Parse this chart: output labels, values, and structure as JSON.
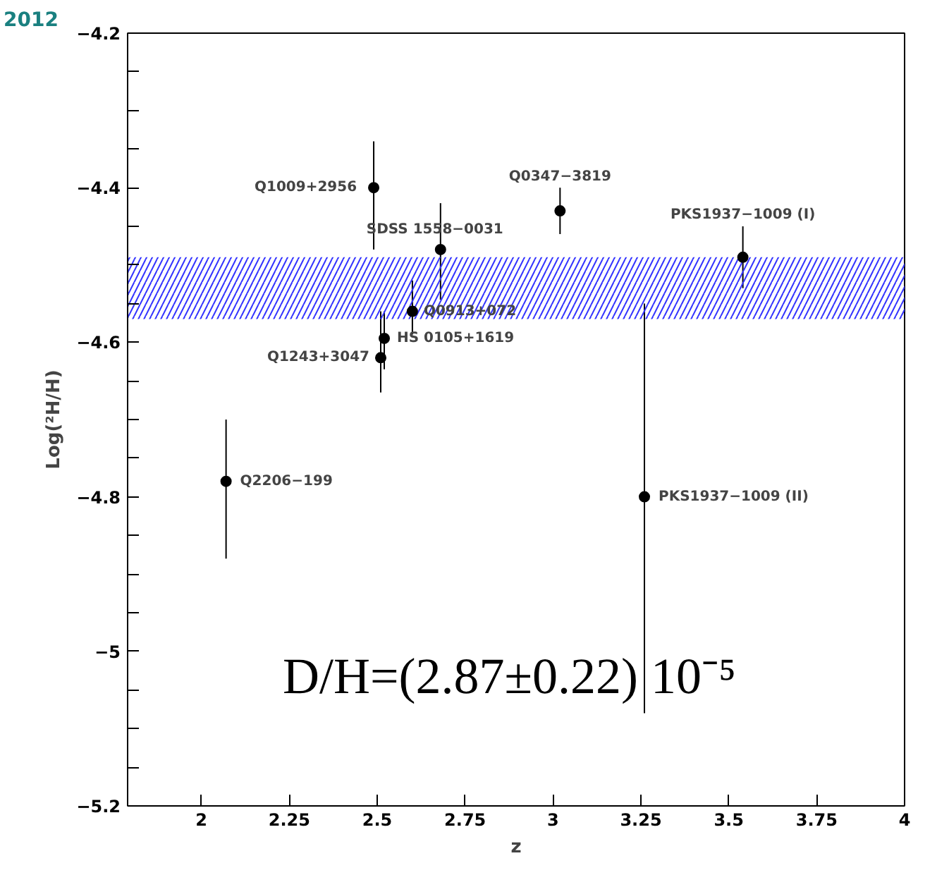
{
  "chart_data": {
    "type": "scatter",
    "xlabel": "z",
    "ylabel": "Log(²H/H)",
    "x": [
      2.49,
      2.68,
      3.02,
      3.54,
      2.6,
      2.52,
      2.51,
      2.07,
      3.26
    ],
    "series": [
      {
        "color": "#000000",
        "values": [
          -4.4,
          -4.48,
          -4.43,
          -4.49,
          -4.56,
          -4.595,
          -4.62,
          -4.78,
          -4.8
        ],
        "errors": [
          [
            -4.48,
            -4.34
          ],
          [
            -4.545,
            -4.42
          ],
          [
            -4.46,
            -4.4
          ],
          [
            -4.53,
            -4.45
          ],
          [
            -4.59,
            -4.52
          ],
          [
            -4.635,
            -4.56
          ],
          [
            -4.665,
            -4.56
          ],
          [
            -4.88,
            -4.7
          ],
          [
            -5.08,
            -4.55
          ]
        ]
      }
    ],
    "marker": "circle",
    "grid": false,
    "xlim": [
      1.79,
      4
    ],
    "ylim": [
      -5.2,
      -4.2
    ],
    "xticks": [
      2,
      2.25,
      2.5,
      2.75,
      3,
      3.25,
      3.5,
      3.75,
      4
    ],
    "yticks": [
      {
        "value": -5.2,
        "label": "−5.2"
      },
      {
        "value": -5.15,
        "label": null
      },
      {
        "value": -5.1,
        "label": null
      },
      {
        "value": -5.05,
        "label": null
      },
      {
        "value": -5.0,
        "label": "−5"
      },
      {
        "value": -4.95,
        "label": null
      },
      {
        "value": -4.9,
        "label": null
      },
      {
        "value": -4.85,
        "label": null
      },
      {
        "value": -4.8,
        "label": "−4.8"
      },
      {
        "value": -4.75,
        "label": null
      },
      {
        "value": -4.7,
        "label": null
      },
      {
        "value": -4.65,
        "label": null
      },
      {
        "value": -4.6,
        "label": "−4.6"
      },
      {
        "value": -4.55,
        "label": null
      },
      {
        "value": -4.5,
        "label": null
      },
      {
        "value": -4.45,
        "label": null
      },
      {
        "value": -4.4,
        "label": "−4.4"
      },
      {
        "value": -4.35,
        "label": null
      },
      {
        "value": -4.3,
        "label": null
      },
      {
        "value": -4.25,
        "label": null
      },
      {
        "value": -4.2,
        "label": "−4.2"
      }
    ],
    "bands": [
      {
        "axis": "y",
        "from": -4.57,
        "to": -4.49,
        "color": "#3333ff"
      }
    ],
    "annotations": [
      "2012",
      "D/H=(2.87±0.22) 10⁻⁵",
      {
        "text": "Q1009+2956",
        "x": 2.49,
        "y": -4.4
      },
      {
        "text": "SDSS 1558−0031",
        "x": 2.68,
        "y": -4.48
      },
      {
        "text": "Q0347−3819",
        "x": 3.02,
        "y": -4.43
      },
      {
        "text": "PKS1937−1009 (I)",
        "x": 3.54,
        "y": -4.49
      },
      {
        "text": "Q0913+072",
        "x": 2.6,
        "y": -4.56
      },
      {
        "text": "HS 0105+1619",
        "x": 2.52,
        "y": -4.595
      },
      {
        "text": "Q1243+3047",
        "x": 2.51,
        "y": -4.62
      },
      {
        "text": "Q2206−199",
        "x": 2.07,
        "y": -4.78
      },
      {
        "text": "PKS1937−1009 (II)",
        "x": 3.26,
        "y": -4.8
      }
    ]
  }
}
